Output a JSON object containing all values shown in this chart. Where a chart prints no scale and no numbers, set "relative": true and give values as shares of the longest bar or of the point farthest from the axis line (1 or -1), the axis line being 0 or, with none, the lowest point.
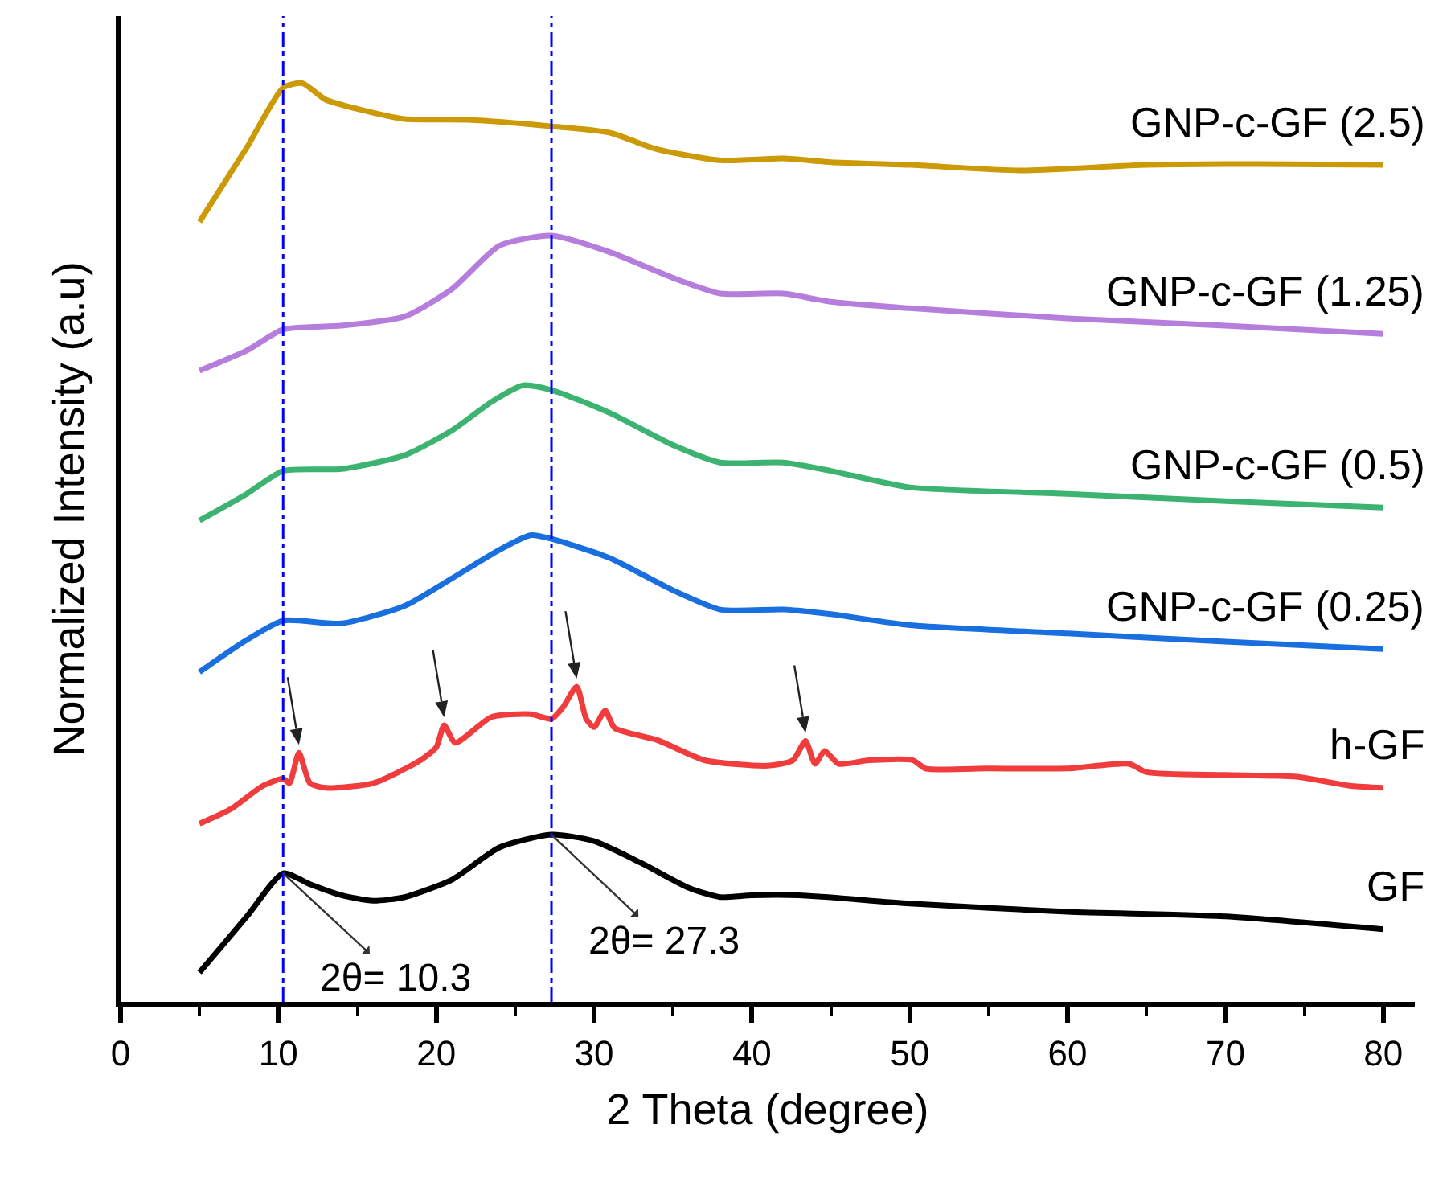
{
  "chart_data": {
    "type": "line",
    "xlabel": "2 Theta (degree)",
    "ylabel": "Normalized Intensity (a.u)",
    "relative": true,
    "xlim": [
      0,
      82
    ],
    "xticks": [
      0,
      10,
      20,
      30,
      40,
      50,
      60,
      70,
      80
    ],
    "grid": false,
    "legend": false,
    "marker": "none",
    "line_style": "solid",
    "series": [
      {
        "name": "GNP-c-GF (2.5)",
        "color": "#cc9a06",
        "x": [
          5,
          8,
          10.3,
          11.5,
          13,
          15,
          18,
          22,
          27.3,
          31,
          34,
          38,
          42,
          45,
          50,
          57,
          65,
          72,
          80
        ],
        "values": [
          0.849,
          0.93,
          0.995,
          1.0,
          0.982,
          0.972,
          0.961,
          0.96,
          0.953,
          0.946,
          0.928,
          0.916,
          0.918,
          0.914,
          0.911,
          0.905,
          0.911,
          0.912,
          0.911
        ]
      },
      {
        "name": "GNP-c-GF (1.25)",
        "color": "#b57edc",
        "x": [
          5,
          8,
          10.3,
          14,
          18,
          21,
          24,
          27.3,
          31,
          35,
          38,
          42,
          45,
          50,
          60,
          70,
          80
        ],
        "values": [
          0.687,
          0.709,
          0.732,
          0.736,
          0.746,
          0.776,
          0.823,
          0.834,
          0.816,
          0.788,
          0.771,
          0.771,
          0.762,
          0.755,
          0.744,
          0.736,
          0.727
        ]
      },
      {
        "name": "GNP-c-GF (0.5)",
        "color": "#3cb371",
        "x": [
          5,
          8,
          10.3,
          14,
          18,
          21,
          23.5,
          25.5,
          27.3,
          31,
          35,
          38,
          42,
          45,
          50,
          60,
          70,
          80
        ],
        "values": [
          0.524,
          0.553,
          0.578,
          0.58,
          0.595,
          0.622,
          0.653,
          0.671,
          0.666,
          0.641,
          0.606,
          0.587,
          0.587,
          0.578,
          0.56,
          0.553,
          0.545,
          0.538
        ]
      },
      {
        "name": "GNP-c-GF (0.25)",
        "color": "#1a6fdf",
        "x": [
          5,
          8,
          10.3,
          14,
          18,
          21,
          24,
          26,
          27.3,
          31,
          35,
          38,
          42,
          45,
          50,
          60,
          70,
          80
        ],
        "values": [
          0.359,
          0.394,
          0.415,
          0.412,
          0.431,
          0.461,
          0.492,
          0.508,
          0.504,
          0.483,
          0.448,
          0.427,
          0.427,
          0.422,
          0.41,
          0.401,
          0.392,
          0.384
        ]
      },
      {
        "name": "h-GF",
        "color": "#f03c3c",
        "x": [
          5,
          7,
          9,
          10.3,
          10.7,
          11.3,
          12,
          13,
          16,
          19,
          20,
          20.5,
          21.2,
          23.5,
          26,
          27.3,
          28,
          28.9,
          29.5,
          30,
          30.7,
          31.3,
          34,
          37,
          41,
          42.6,
          43.4,
          44,
          44.6,
          45.5,
          47.4,
          50.2,
          51,
          55,
          60,
          63.9,
          65,
          70,
          74.5,
          78,
          80
        ],
        "values": [
          0.194,
          0.21,
          0.235,
          0.243,
          0.238,
          0.271,
          0.238,
          0.233,
          0.238,
          0.263,
          0.277,
          0.301,
          0.282,
          0.31,
          0.313,
          0.308,
          0.32,
          0.343,
          0.308,
          0.299,
          0.317,
          0.298,
          0.285,
          0.263,
          0.257,
          0.263,
          0.284,
          0.259,
          0.273,
          0.259,
          0.263,
          0.263,
          0.254,
          0.254,
          0.254,
          0.259,
          0.25,
          0.247,
          0.245,
          0.235,
          0.233
        ]
      },
      {
        "name": "GF",
        "color": "#000000",
        "x": [
          5,
          8,
          10.3,
          12,
          14,
          16,
          18,
          21,
          24,
          27.3,
          30,
          33,
          36,
          38,
          40,
          43,
          50,
          60,
          70,
          80
        ],
        "values": [
          0.032,
          0.093,
          0.14,
          0.128,
          0.116,
          0.11,
          0.114,
          0.133,
          0.168,
          0.182,
          0.175,
          0.151,
          0.124,
          0.114,
          0.116,
          0.116,
          0.107,
          0.098,
          0.093,
          0.079
        ]
      }
    ],
    "ref_lines": [
      {
        "axis": "x",
        "value": 10.3,
        "color": "#0000ff",
        "line_style": "dashed"
      },
      {
        "axis": "x",
        "value": 27.3,
        "color": "#0000ff",
        "line_style": "dashed"
      }
    ],
    "annotations": [
      {
        "text": "2θ= 10.3",
        "x": 10.3,
        "y": 0.14
      },
      {
        "text": "2θ= 27.3",
        "x": 27.3,
        "y": 0.182
      }
    ]
  }
}
